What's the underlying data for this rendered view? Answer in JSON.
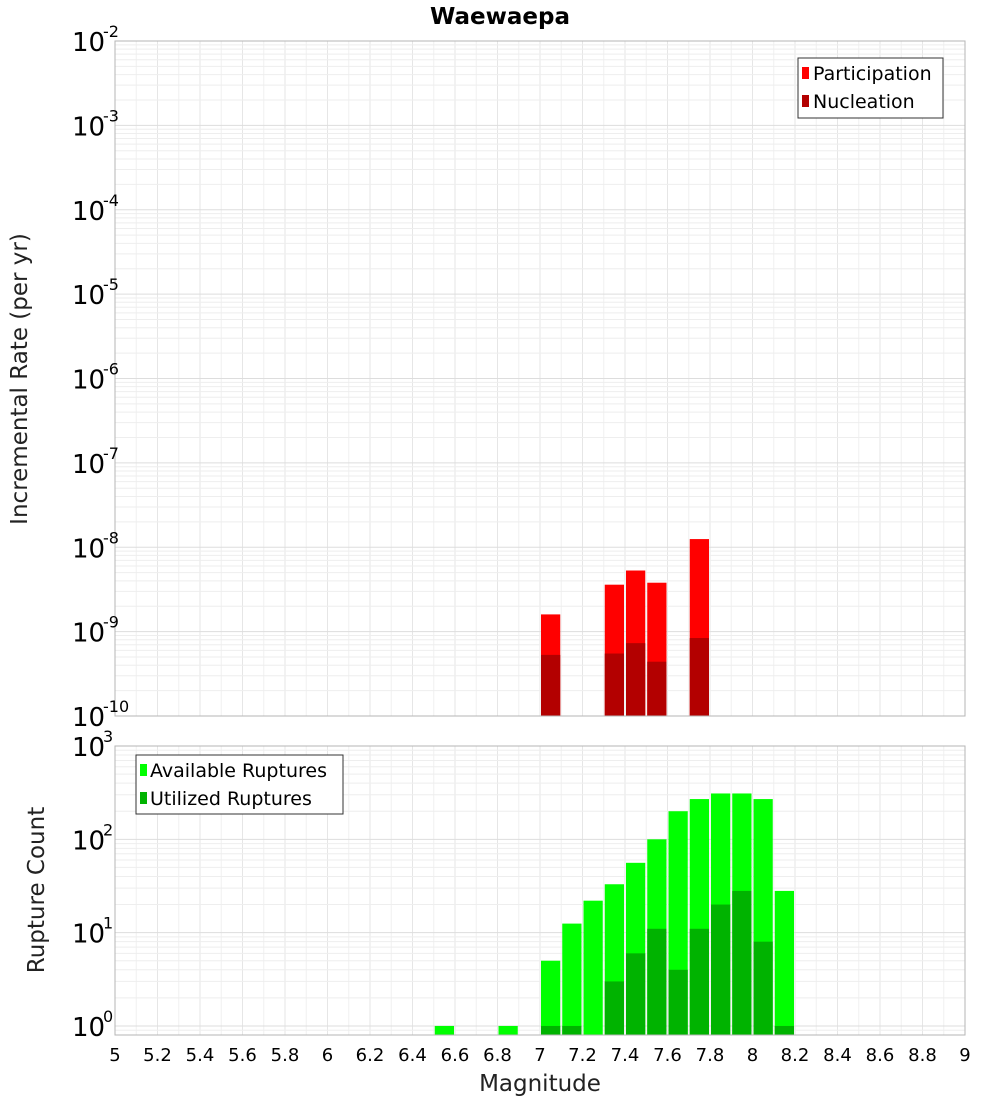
{
  "chart_data": {
    "title": "Waewaepa",
    "xlabel": "Magnitude",
    "xlim": [
      5,
      9
    ],
    "xticks": [
      "5",
      "5.2",
      "5.4",
      "5.6",
      "5.8",
      "6",
      "6.2",
      "6.4",
      "6.6",
      "6.8",
      "7",
      "7.2",
      "7.4",
      "7.6",
      "7.8",
      "8",
      "8.2",
      "8.4",
      "8.6",
      "8.8",
      "9"
    ],
    "bin_width": 0.1,
    "grid": true,
    "panels": [
      {
        "type": "bar",
        "ylabel": "Incremental Rate (per yr)",
        "yscale": "log",
        "ylim": [
          1e-10,
          0.01
        ],
        "yticks": [
          {
            "base": "10",
            "exp": "-10",
            "value": 1e-10
          },
          {
            "base": "10",
            "exp": "-9",
            "value": 1e-09
          },
          {
            "base": "10",
            "exp": "-8",
            "value": 1e-08
          },
          {
            "base": "10",
            "exp": "-7",
            "value": 1e-07
          },
          {
            "base": "10",
            "exp": "-6",
            "value": 1e-06
          },
          {
            "base": "10",
            "exp": "-5",
            "value": 1e-05
          },
          {
            "base": "10",
            "exp": "-4",
            "value": 0.0001
          },
          {
            "base": "10",
            "exp": "-3",
            "value": 0.001
          },
          {
            "base": "10",
            "exp": "-2",
            "value": 0.01
          }
        ],
        "legend_position": "top-right",
        "series": [
          {
            "name": "Participation",
            "color": "#ff0000",
            "x": [
              7.05,
              7.35,
              7.45,
              7.55,
              7.75
            ],
            "values": [
              1.6e-09,
              3.6e-09,
              5.3e-09,
              3.8e-09,
              1.25e-08
            ]
          },
          {
            "name": "Nucleation",
            "color": "#b30000",
            "x": [
              7.05,
              7.35,
              7.45,
              7.55,
              7.75
            ],
            "values": [
              5.3e-10,
              5.5e-10,
              7.3e-10,
              4.4e-10,
              8.4e-10
            ]
          }
        ]
      },
      {
        "type": "bar",
        "ylabel": "Rupture Count",
        "yscale": "log",
        "ylim": [
          0.8,
          1000
        ],
        "yticks": [
          {
            "base": "10",
            "exp": "0",
            "value": 1
          },
          {
            "base": "10",
            "exp": "1",
            "value": 10
          },
          {
            "base": "10",
            "exp": "2",
            "value": 100
          },
          {
            "base": "10",
            "exp": "3",
            "value": 1000
          }
        ],
        "legend_position": "top-left",
        "series": [
          {
            "name": "Available Ruptures",
            "color": "#00ff00",
            "x": [
              6.55,
              6.85,
              7.05,
              7.15,
              7.25,
              7.35,
              7.45,
              7.55,
              7.65,
              7.75,
              7.85,
              7.95,
              8.05,
              8.15
            ],
            "values": [
              1,
              1,
              5,
              12.5,
              22,
              33,
              56,
              100,
              200,
              270,
              310,
              310,
              270,
              28
            ]
          },
          {
            "name": "Utilized Ruptures",
            "color": "#00b300",
            "x": [
              7.05,
              7.15,
              7.35,
              7.45,
              7.55,
              7.65,
              7.75,
              7.85,
              7.95,
              8.05,
              8.15
            ],
            "values": [
              1,
              1,
              3,
              6,
              11,
              4,
              11,
              20,
              28,
              8,
              1
            ]
          }
        ]
      }
    ]
  }
}
